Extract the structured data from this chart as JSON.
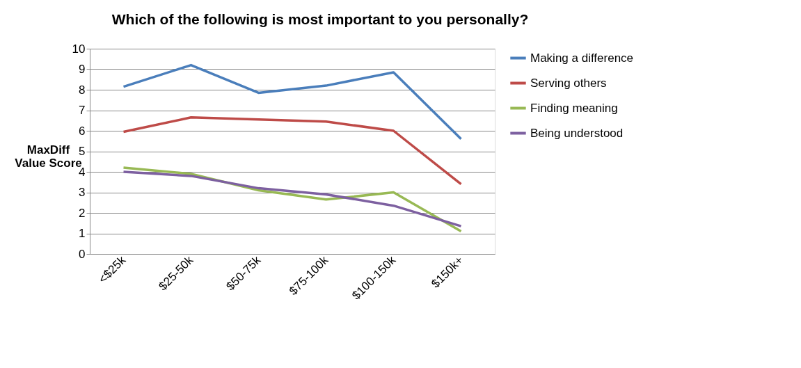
{
  "chart_data": {
    "type": "line",
    "title": "Which of the following is most important to you personally?",
    "ylabel": "MaxDiff Value Score",
    "categories": [
      "<$25k",
      "$25-50k",
      "$50-75k",
      "$75-100k",
      "$100-150k",
      "$150k+"
    ],
    "ylim": [
      0,
      10
    ],
    "yticks": [
      0,
      1,
      2,
      3,
      4,
      5,
      6,
      7,
      8,
      9,
      10
    ],
    "grid": "y",
    "legend": "right",
    "marker": "none",
    "line_style": "solid",
    "series": [
      {
        "name": "Making a difference",
        "color": "#4a7ebb",
        "values": [
          8.15,
          9.2,
          7.85,
          8.2,
          8.85,
          5.6
        ]
      },
      {
        "name": "Serving others",
        "color": "#be4b48",
        "values": [
          5.95,
          6.65,
          6.55,
          6.45,
          6.0,
          3.4
        ]
      },
      {
        "name": "Finding meaning",
        "color": "#98b954",
        "values": [
          4.2,
          3.9,
          3.1,
          2.65,
          3.0,
          1.1
        ]
      },
      {
        "name": "Being understood",
        "color": "#7d60a0",
        "values": [
          4.0,
          3.8,
          3.2,
          2.9,
          2.35,
          1.35
        ]
      }
    ]
  }
}
